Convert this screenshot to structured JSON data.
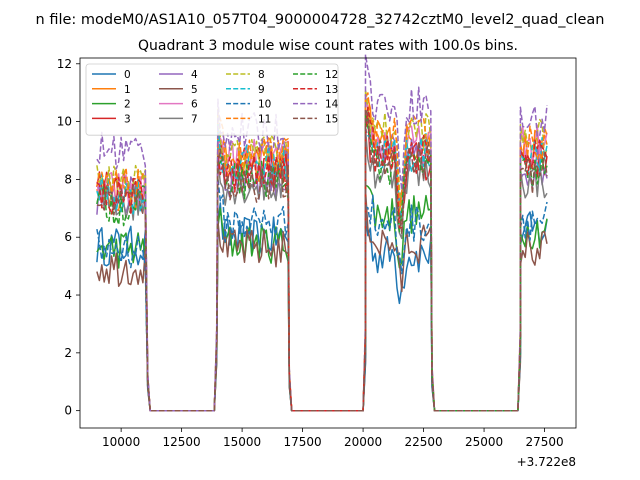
{
  "chart_data": {
    "type": "line",
    "suptitle": "n file: modeM0/AS1A10_057T04_9000004728_32742cztM0_level2_quad_clean",
    "title": "Quadrant 3 module wise count rates with 100.0s bins.",
    "xlabel": "",
    "ylabel": "",
    "x_offset_label": "+3.722e8",
    "xlim": [
      8300,
      28800
    ],
    "ylim": [
      -0.6,
      12.2
    ],
    "x_ticks": [
      10000,
      12500,
      15000,
      17500,
      20000,
      22500,
      25000,
      27500
    ],
    "x_tick_labels": [
      "10000",
      "12500",
      "15000",
      "17500",
      "20000",
      "22500",
      "25000",
      "27500"
    ],
    "y_ticks": [
      0,
      2,
      4,
      6,
      8,
      10,
      12
    ],
    "y_tick_labels": [
      "0",
      "2",
      "4",
      "6",
      "8",
      "10",
      "12"
    ],
    "grid": false,
    "legend_position": "top-left",
    "legend_columns": 4,
    "segments": [
      [
        9000,
        11000
      ],
      [
        14000,
        16900
      ],
      [
        20100,
        22800
      ],
      [
        26500,
        27600
      ]
    ],
    "gaps": [
      [
        11200,
        13850
      ],
      [
        17050,
        20000
      ],
      [
        22950,
        26400
      ]
    ],
    "series": [
      {
        "name": "0",
        "color": "#1f77b4",
        "dash": "solid",
        "levels": [
          5.7,
          6.0,
          5.4,
          6.2
        ]
      },
      {
        "name": "1",
        "color": "#ff7f0e",
        "dash": "solid",
        "levels": [
          7.6,
          8.6,
          9.3,
          9.0
        ]
      },
      {
        "name": "2",
        "color": "#2ca02c",
        "dash": "solid",
        "levels": [
          5.6,
          5.8,
          6.8,
          6.3
        ]
      },
      {
        "name": "3",
        "color": "#d62728",
        "dash": "solid",
        "levels": [
          7.8,
          8.4,
          8.6,
          8.7
        ]
      },
      {
        "name": "4",
        "color": "#9467bd",
        "dash": "solid",
        "levels": [
          7.4,
          8.0,
          8.9,
          8.4
        ]
      },
      {
        "name": "5",
        "color": "#8c564b",
        "dash": "solid",
        "levels": [
          5.0,
          5.6,
          5.8,
          5.6
        ]
      },
      {
        "name": "6",
        "color": "#e377c2",
        "dash": "solid",
        "levels": [
          7.6,
          8.7,
          9.2,
          9.2
        ]
      },
      {
        "name": "7",
        "color": "#7f7f7f",
        "dash": "solid",
        "levels": [
          7.2,
          7.8,
          8.2,
          8.0
        ]
      },
      {
        "name": "8",
        "color": "#bcbd22",
        "dash": "dashed",
        "levels": [
          7.9,
          8.9,
          9.7,
          9.4
        ]
      },
      {
        "name": "9",
        "color": "#17becf",
        "dash": "dashed",
        "levels": [
          7.5,
          8.5,
          8.9,
          8.8
        ]
      },
      {
        "name": "10",
        "color": "#1f77b4",
        "dash": "dashed",
        "levels": [
          5.6,
          6.5,
          6.5,
          6.6
        ]
      },
      {
        "name": "11",
        "color": "#ff7f0e",
        "dash": "dashed",
        "levels": [
          7.7,
          8.8,
          9.5,
          9.3
        ]
      },
      {
        "name": "12",
        "color": "#2ca02c",
        "dash": "dashed",
        "levels": [
          7.1,
          8.0,
          8.5,
          8.2
        ]
      },
      {
        "name": "13",
        "color": "#d62728",
        "dash": "dashed",
        "levels": [
          7.4,
          8.2,
          8.9,
          8.8
        ]
      },
      {
        "name": "14",
        "color": "#9467bd",
        "dash": "dashed",
        "levels": [
          9.0,
          9.6,
          10.6,
          10.0
        ]
      },
      {
        "name": "15",
        "color": "#8c564b",
        "dash": "dashed",
        "levels": [
          7.3,
          7.9,
          8.7,
          8.2
        ]
      }
    ]
  }
}
